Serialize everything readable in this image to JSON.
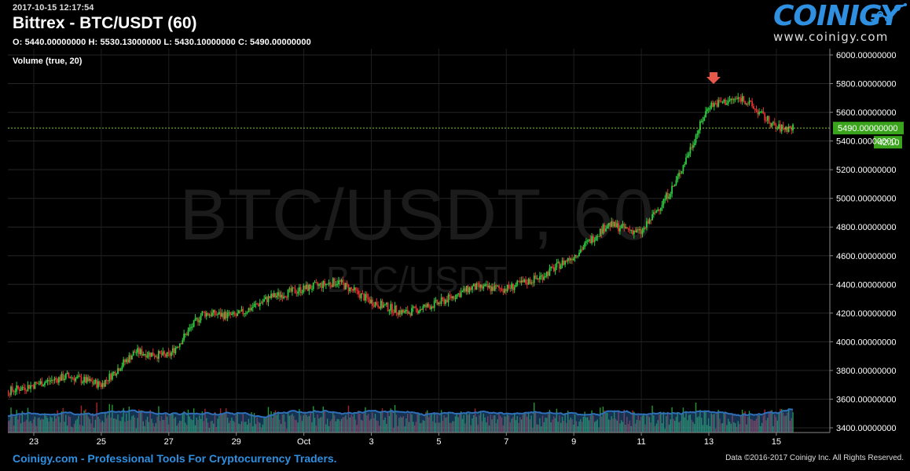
{
  "header": {
    "timestamp": "2017-10-15 12:17:54",
    "title": "Bittrex - BTC/USDT (60)",
    "ohlc": "O: 5440.00000000 H: 5530.13000000 L: 5430.10000000 C: 5490.00000000",
    "volume_label": "Volume (true, 20)"
  },
  "logo": {
    "name": "COINIGY",
    "url": "www.coinigy.com",
    "icon": "trend-line-icon"
  },
  "watermark": {
    "main": "BTC/USDT, 60",
    "secondary": "BTC/USDT"
  },
  "footer": {
    "tagline": "Coinigy.com - Professional Tools For Cryptocurrency Traders.",
    "copyright": "Data ©2016-2017 Coinigy Inc. All Rights Reserved."
  },
  "colors": {
    "up": "#2ecc40",
    "down": "#e03030",
    "volume_ma": "#2f6fb8",
    "price_line": "#8bc34a",
    "price_tag_bg": "#3aa51c",
    "accent": "#2f8fe0",
    "marker": "#e8584a"
  },
  "chart_data": {
    "type": "candlestick",
    "symbol": "BTC/USDT",
    "interval": "60",
    "x_tick_labels": [
      "23",
      "25",
      "27",
      "29",
      "Oct",
      "3",
      "5",
      "7",
      "9",
      "11",
      "13",
      "15"
    ],
    "y_tick_labels": [
      "3400.00000000",
      "3600.00000000",
      "3800.00000000",
      "4000.00000000",
      "4200.00000000",
      "4400.00000000",
      "4600.00000000",
      "4800.00000000",
      "5000.00000000",
      "5200.00000000",
      "5400.00000000",
      "5600.00000000",
      "5800.00000000",
      "6000.00000000"
    ],
    "ylim": [
      3400,
      6000
    ],
    "current_price_label": "5490.00000000",
    "countdown_label": "42:10",
    "approx_close_path": [
      [
        "2017-09-22",
        3640
      ],
      [
        "2017-09-23",
        3700
      ],
      [
        "2017-09-24",
        3760
      ],
      [
        "2017-09-25",
        3700
      ],
      [
        "2017-09-26",
        3930
      ],
      [
        "2017-09-27",
        3900
      ],
      [
        "2017-09-28",
        4200
      ],
      [
        "2017-09-29",
        4180
      ],
      [
        "2017-09-30",
        4310
      ],
      [
        "2017-10-01",
        4370
      ],
      [
        "2017-10-02",
        4420
      ],
      [
        "2017-10-03",
        4280
      ],
      [
        "2017-10-04",
        4200
      ],
      [
        "2017-10-05",
        4270
      ],
      [
        "2017-10-06",
        4380
      ],
      [
        "2017-10-07",
        4370
      ],
      [
        "2017-10-08",
        4450
      ],
      [
        "2017-10-09",
        4600
      ],
      [
        "2017-10-10",
        4820
      ],
      [
        "2017-10-11",
        4760
      ],
      [
        "2017-10-12",
        5100
      ],
      [
        "2017-10-13",
        5650
      ],
      [
        "2017-10-14",
        5700
      ],
      [
        "2017-10-15",
        5490
      ]
    ],
    "marker": {
      "type": "down-arrow",
      "date": "2017-10-13"
    }
  }
}
